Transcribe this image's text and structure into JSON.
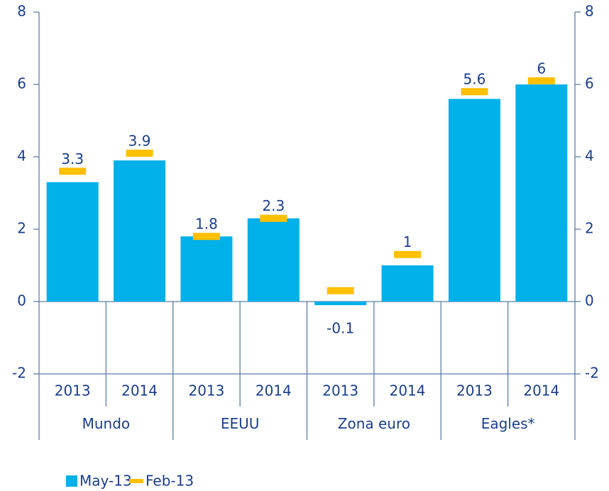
{
  "chart_data": {
    "type": "bar",
    "categories": [
      "2013",
      "2014",
      "2013",
      "2014",
      "2013",
      "2014",
      "2013",
      "2014"
    ],
    "groups": [
      "Mundo",
      "EEUU",
      "Zona euro",
      "Eagles*"
    ],
    "series": [
      {
        "name": "May-13",
        "color": "#00b0e8",
        "values": [
          3.3,
          3.9,
          1.8,
          2.3,
          -0.1,
          1,
          5.6,
          6
        ]
      },
      {
        "name": "Feb-13",
        "color": "#ffc000",
        "values": [
          3.6,
          4.1,
          1.8,
          2.3,
          0.3,
          1.3,
          5.8,
          6.1
        ]
      }
    ],
    "ylim": [
      -2,
      8
    ],
    "yticks": [
      -2,
      0,
      2,
      4,
      6,
      8
    ],
    "y2lim": [
      -2,
      8
    ],
    "y2ticks": [
      -2,
      0,
      2,
      4,
      6,
      8
    ],
    "grid": false,
    "legend": "bottom-left"
  }
}
